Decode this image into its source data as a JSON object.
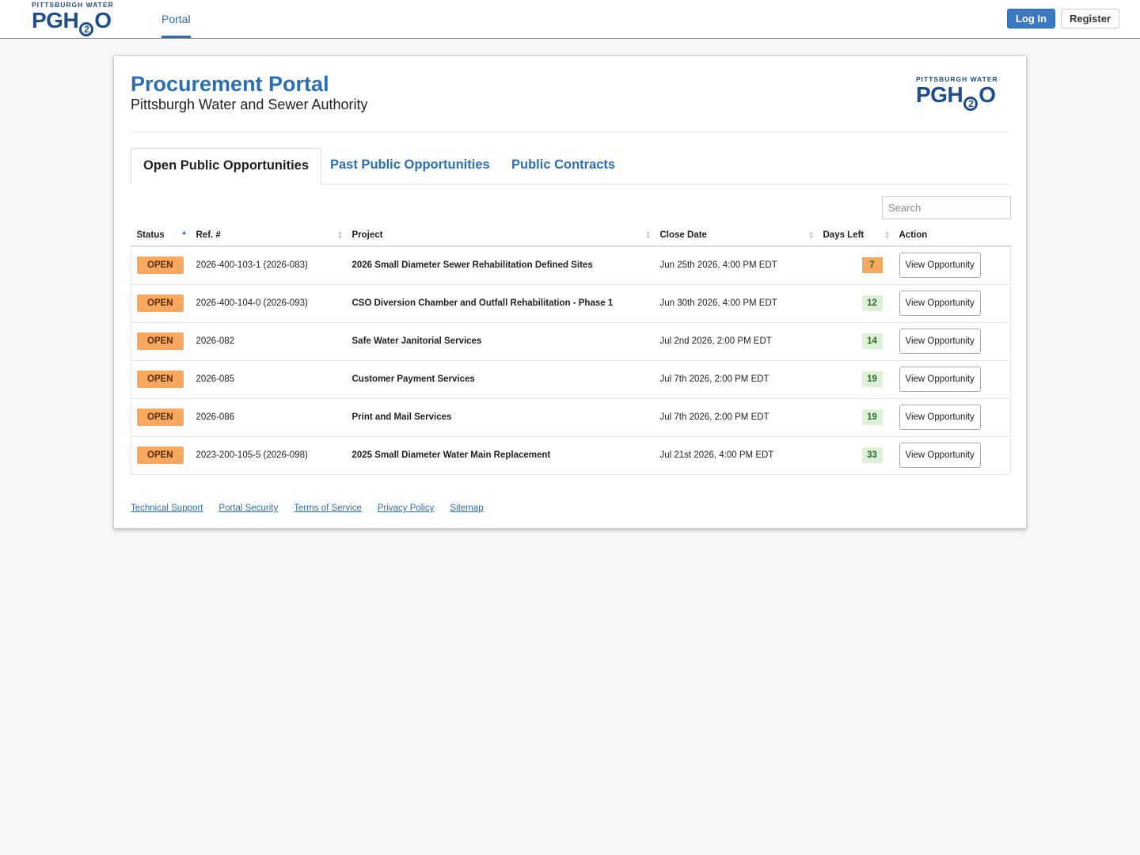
{
  "logo": {
    "small": "PITTSBURGH WATER",
    "main": [
      "PGH",
      "2",
      "O"
    ]
  },
  "nav": {
    "portal": "Portal",
    "login": "Log In",
    "register": "Register"
  },
  "header": {
    "title": "Procurement Portal",
    "subtitle": "Pittsburgh Water and Sewer Authority"
  },
  "tabs": [
    "Open Public Opportunities",
    "Past Public Opportunities",
    "Public Contracts"
  ],
  "search": {
    "placeholder": "Search"
  },
  "table": {
    "columns": [
      "Status",
      "Ref. #",
      "Project",
      "Close Date",
      "Days Left",
      "Action"
    ],
    "rows": [
      {
        "status": "OPEN",
        "ref": "2026-400-103-1 (2026-083)",
        "project": "2026 Small Diameter Sewer Rehabilitation Defined Sites",
        "close": "Jun 25th 2026, 4:00 PM EDT",
        "days": 7,
        "days_color": "#f7a860",
        "action": "View Opportunity"
      },
      {
        "status": "OPEN",
        "ref": "2026-400-104-0 (2026-093)",
        "project": "CSO Diversion Chamber and Outfall Rehabilitation - Phase 1",
        "close": "Jun 30th 2026, 4:00 PM EDT",
        "days": 12,
        "days_color": "#dff0d8",
        "action": "View Opportunity"
      },
      {
        "status": "OPEN",
        "ref": "2026-082",
        "project": "Safe Water Janitorial Services",
        "close": "Jul 2nd 2026, 2:00 PM EDT",
        "days": 14,
        "days_color": "#dff0d8",
        "action": "View Opportunity"
      },
      {
        "status": "OPEN",
        "ref": "2026-085",
        "project": "Customer Payment Services",
        "close": "Jul 7th 2026, 2:00 PM EDT",
        "days": 19,
        "days_color": "#dff0d8",
        "action": "View Opportunity"
      },
      {
        "status": "OPEN",
        "ref": "2026-086",
        "project": "Print and Mail Services",
        "close": "Jul 7th 2026, 2:00 PM EDT",
        "days": 19,
        "days_color": "#dff0d8",
        "action": "View Opportunity"
      },
      {
        "status": "OPEN",
        "ref": "2023-200-105-5 (2026-098)",
        "project": "2025 Small Diameter Water Main Replacement",
        "close": "Jul 21st 2026, 4:00 PM EDT",
        "days": 33,
        "days_color": "#dff0d8",
        "action": "View Opportunity"
      }
    ]
  },
  "footer": [
    "Technical Support",
    "Portal Security",
    "Terms of Service",
    "Privacy Policy",
    "Sitemap"
  ]
}
